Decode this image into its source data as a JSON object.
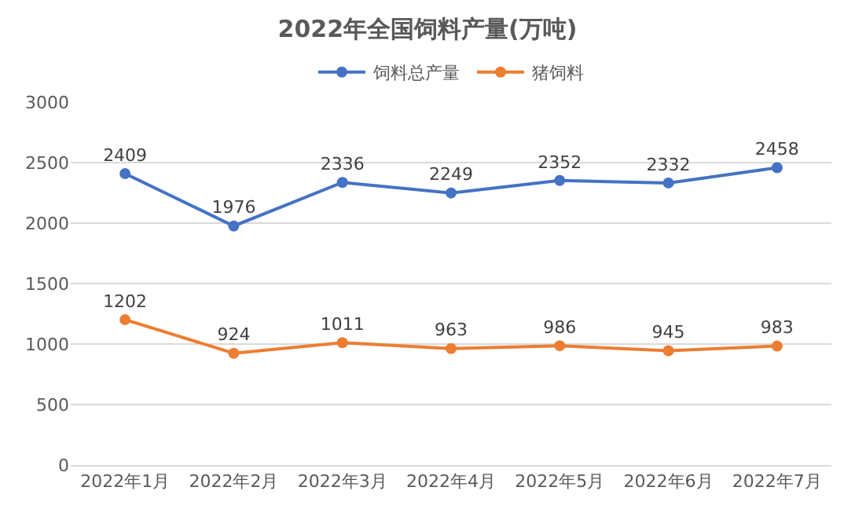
{
  "chart_data": {
    "type": "line",
    "title": "2022年全国饲料产量(万吨)",
    "categories": [
      "2022年1月",
      "2022年2月",
      "2022年3月",
      "2022年4月",
      "2022年5月",
      "2022年6月",
      "2022年7月"
    ],
    "series": [
      {
        "name": "饲料总产量",
        "color": "#4472c4",
        "values": [
          2409,
          1976,
          2336,
          2249,
          2352,
          2332,
          2458
        ]
      },
      {
        "name": "猪饲料",
        "color": "#ed7d31",
        "values": [
          1202,
          924,
          1011,
          963,
          986,
          945,
          983
        ]
      }
    ],
    "ylim": [
      0,
      3000
    ],
    "yticks": [
      0,
      500,
      1000,
      1500,
      2000,
      2500,
      3000
    ],
    "grid": "y",
    "legend": "top",
    "marker": "circle",
    "line_style": "solid",
    "data_labels": true
  }
}
